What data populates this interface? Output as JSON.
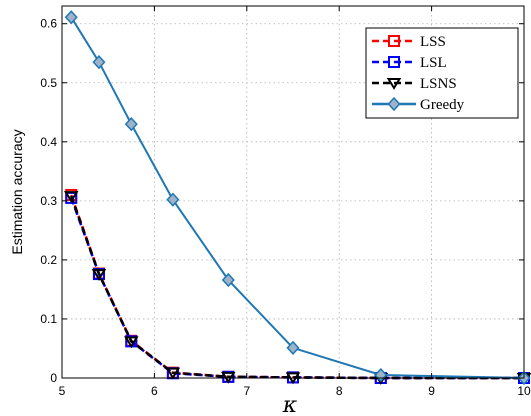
{
  "chart_data": {
    "type": "line",
    "xlabel": "κ",
    "ylabel": "Estimation accuracy",
    "xlim": [
      5,
      10
    ],
    "ylim": [
      0,
      0.63
    ],
    "xticks": [
      "5",
      "6",
      "7",
      "8",
      "9",
      "10"
    ],
    "yticks": [
      "0",
      "0.1",
      "0.2",
      "0.3",
      "0.4",
      "0.5",
      "0.6"
    ],
    "grid": true,
    "legend_position": "top-right",
    "x": [
      5.1,
      5.4,
      5.75,
      6.2,
      6.8,
      7.5,
      8.45,
      10
    ],
    "series": [
      {
        "name": "LSS",
        "color": "#ff0000",
        "marker": "square",
        "dash": true,
        "values": [
          0.31,
          0.177,
          0.063,
          0.009,
          0.002,
          0.001,
          0.0,
          0.0
        ]
      },
      {
        "name": "LSL",
        "color": "#0000ff",
        "marker": "square",
        "dash": true,
        "values": [
          0.305,
          0.176,
          0.062,
          0.008,
          0.002,
          0.001,
          0.0,
          0.0
        ]
      },
      {
        "name": "LSNS",
        "color": "#000000",
        "marker": "triangle-down",
        "dash": true,
        "values": [
          0.308,
          0.176,
          0.062,
          0.009,
          0.002,
          0.001,
          0.0,
          0.0
        ]
      },
      {
        "name": "Greedy",
        "color": "#1f77b4",
        "marker": "diamond",
        "dash": false,
        "values": [
          0.611,
          0.535,
          0.43,
          0.302,
          0.166,
          0.051,
          0.005,
          0.0
        ]
      }
    ]
  }
}
